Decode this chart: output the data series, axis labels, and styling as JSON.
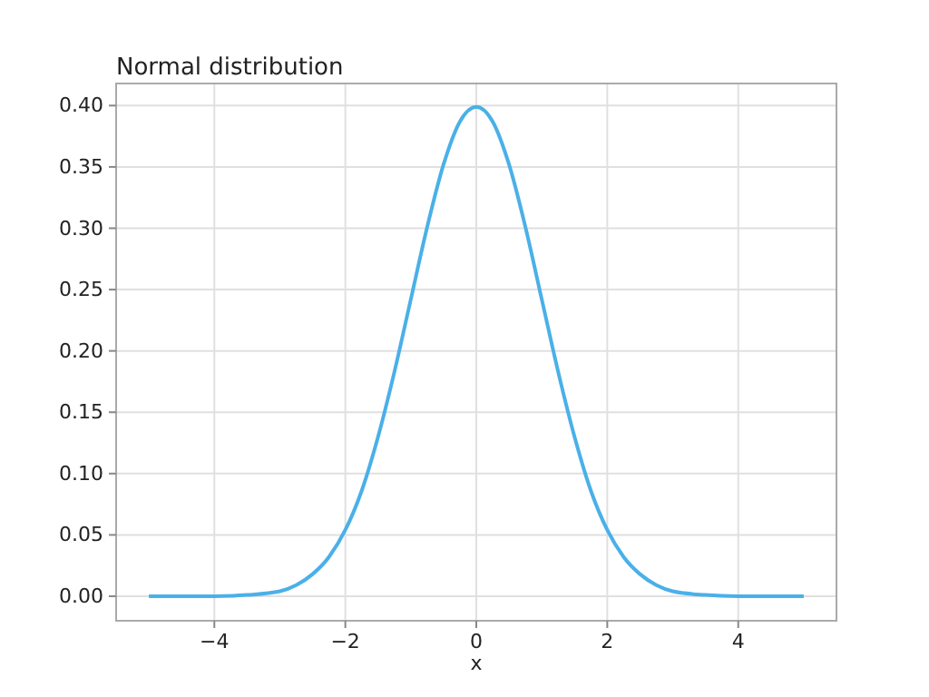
{
  "chart_data": {
    "type": "line",
    "title": "Normal distribution",
    "xlabel": "x",
    "x": [
      -5,
      -4,
      -3.5,
      -3,
      -2.75,
      -2.5,
      -2.25,
      -2,
      -1.75,
      -1.5,
      -1.25,
      -1,
      -0.75,
      -0.5,
      -0.25,
      0,
      0.25,
      0.5,
      0.75,
      1,
      1.25,
      1.5,
      1.75,
      2,
      2.25,
      2.5,
      2.75,
      3,
      3.5,
      4,
      5
    ],
    "series": [
      {
        "color": "#4ab0e8",
        "values": [
          0,
          0,
          0.001,
          0.004,
          0.009,
          0.018,
          0.032,
          0.054,
          0.086,
          0.13,
          0.183,
          0.242,
          0.301,
          0.352,
          0.387,
          0.399,
          0.387,
          0.352,
          0.301,
          0.242,
          0.183,
          0.13,
          0.086,
          0.054,
          0.032,
          0.018,
          0.009,
          0.004,
          0.001,
          0,
          0
        ]
      }
    ],
    "xlim": [
      -5.5,
      5.5
    ],
    "ylim": [
      -0.02,
      0.418
    ],
    "xticks": [
      {
        "value": -4,
        "label": "−4"
      },
      {
        "value": -2,
        "label": "−2"
      },
      0,
      2,
      4
    ],
    "yticks": [
      {
        "value": 0,
        "label": "0.00"
      },
      {
        "value": 0.05,
        "label": "0.05"
      },
      {
        "value": 0.1,
        "label": "0.10"
      },
      {
        "value": 0.15,
        "label": "0.15"
      },
      {
        "value": 0.2,
        "label": "0.20"
      },
      {
        "value": 0.25,
        "label": "0.25"
      },
      {
        "value": 0.3,
        "label": "0.30"
      },
      {
        "value": 0.35,
        "label": "0.35"
      },
      {
        "value": 0.4,
        "label": "0.40"
      }
    ],
    "grid": true,
    "marker": "none",
    "line_style": "solid"
  }
}
